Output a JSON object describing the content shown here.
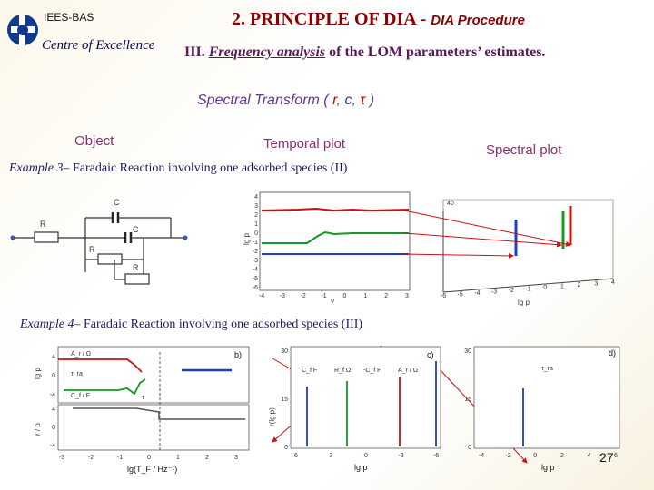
{
  "header": {
    "org": "IEES-BAS",
    "coe": "Centre of Excellence",
    "title_main": "2. PRINCIPLE OF DIA -",
    "title_sub": "DIA Procedure",
    "subtitle_num": "III.",
    "subtitle_emph": "Frequency analysis",
    "subtitle_rest": "of the LOM parameters’ estimates."
  },
  "spectral": {
    "prefix": "Spectral Transform  (",
    "r": "r",
    "comma1": ",",
    "c": "c",
    "comma2": ",",
    "tau": "τ",
    "suffix": ")"
  },
  "labels": {
    "object": "Object",
    "temporal": "Temporal  plot",
    "spectral": "Spectral  plot"
  },
  "example3": {
    "lead": "Example 3",
    "text": "– Faradaic Reaction involving  one adsorbed species (II)"
  },
  "example4": {
    "lead": "Example 4",
    "text": "– Faradaic Reaction involving  one adsorbed species (III)"
  },
  "circuit": {
    "c_top": "C",
    "r_left": "R",
    "c_mid": "C",
    "r_mid": "R",
    "r_bot": "R"
  },
  "fig3": {
    "temporal_yticks": [
      "4",
      "3",
      "2",
      "1",
      "0",
      "-1",
      "-2",
      "-3",
      "-4",
      "-5",
      "-6"
    ],
    "temporal_xticks": [
      "-4",
      "-3",
      "-2",
      "-1",
      "0",
      "1",
      "2",
      "3"
    ],
    "temporal_ylabel": "lg p",
    "temporal_xlabel": "ν",
    "spectral_top": "40",
    "spectral_xticks": [
      "-6",
      "-5",
      "-4",
      "-3",
      "-2",
      "-1",
      "0",
      "1",
      "2",
      "3",
      "4"
    ],
    "spectral_xlabel": "lg p"
  },
  "fig4": {
    "panel_b": "b)",
    "panel_c": "c)",
    "panel_d": "d)",
    "b_ytop": [
      "4",
      "0",
      "-4"
    ],
    "b_ybot": [
      "4",
      "0",
      "-4"
    ],
    "b_xticks": [
      "-3",
      "-2",
      "-1",
      "0",
      "1",
      "2",
      "3"
    ],
    "b_xlabel": "lg(T_F / Hz⁻¹)",
    "b_top_ylabel": "lg p",
    "b_bot_ylabel": "r / p",
    "b_tags": [
      "A_r / Ω",
      "τ_ra",
      "C_f / F",
      "τ"
    ],
    "c_yticks": [
      "30",
      "15",
      "0"
    ],
    "c_xticks": [
      "6",
      "3",
      "0",
      "-3",
      "-6"
    ],
    "c_xlabel": "lg p",
    "c_ylabel": "r(lg p)",
    "c_legend": [
      "C_f F",
      "R_f Ω",
      "-C_f F",
      "A_r / Ω"
    ],
    "d_yticks": [
      "30",
      "15",
      "0"
    ],
    "d_xticks": [
      "-4",
      "-2",
      "0",
      "2",
      "4",
      "6"
    ],
    "d_xlabel": "lg p",
    "d_legend": "τ_ra"
  },
  "page_number": "27",
  "colors": {
    "red": "#cc1111",
    "green": "#119922",
    "blue": "#1f3fc2",
    "title": "#8b0000"
  }
}
